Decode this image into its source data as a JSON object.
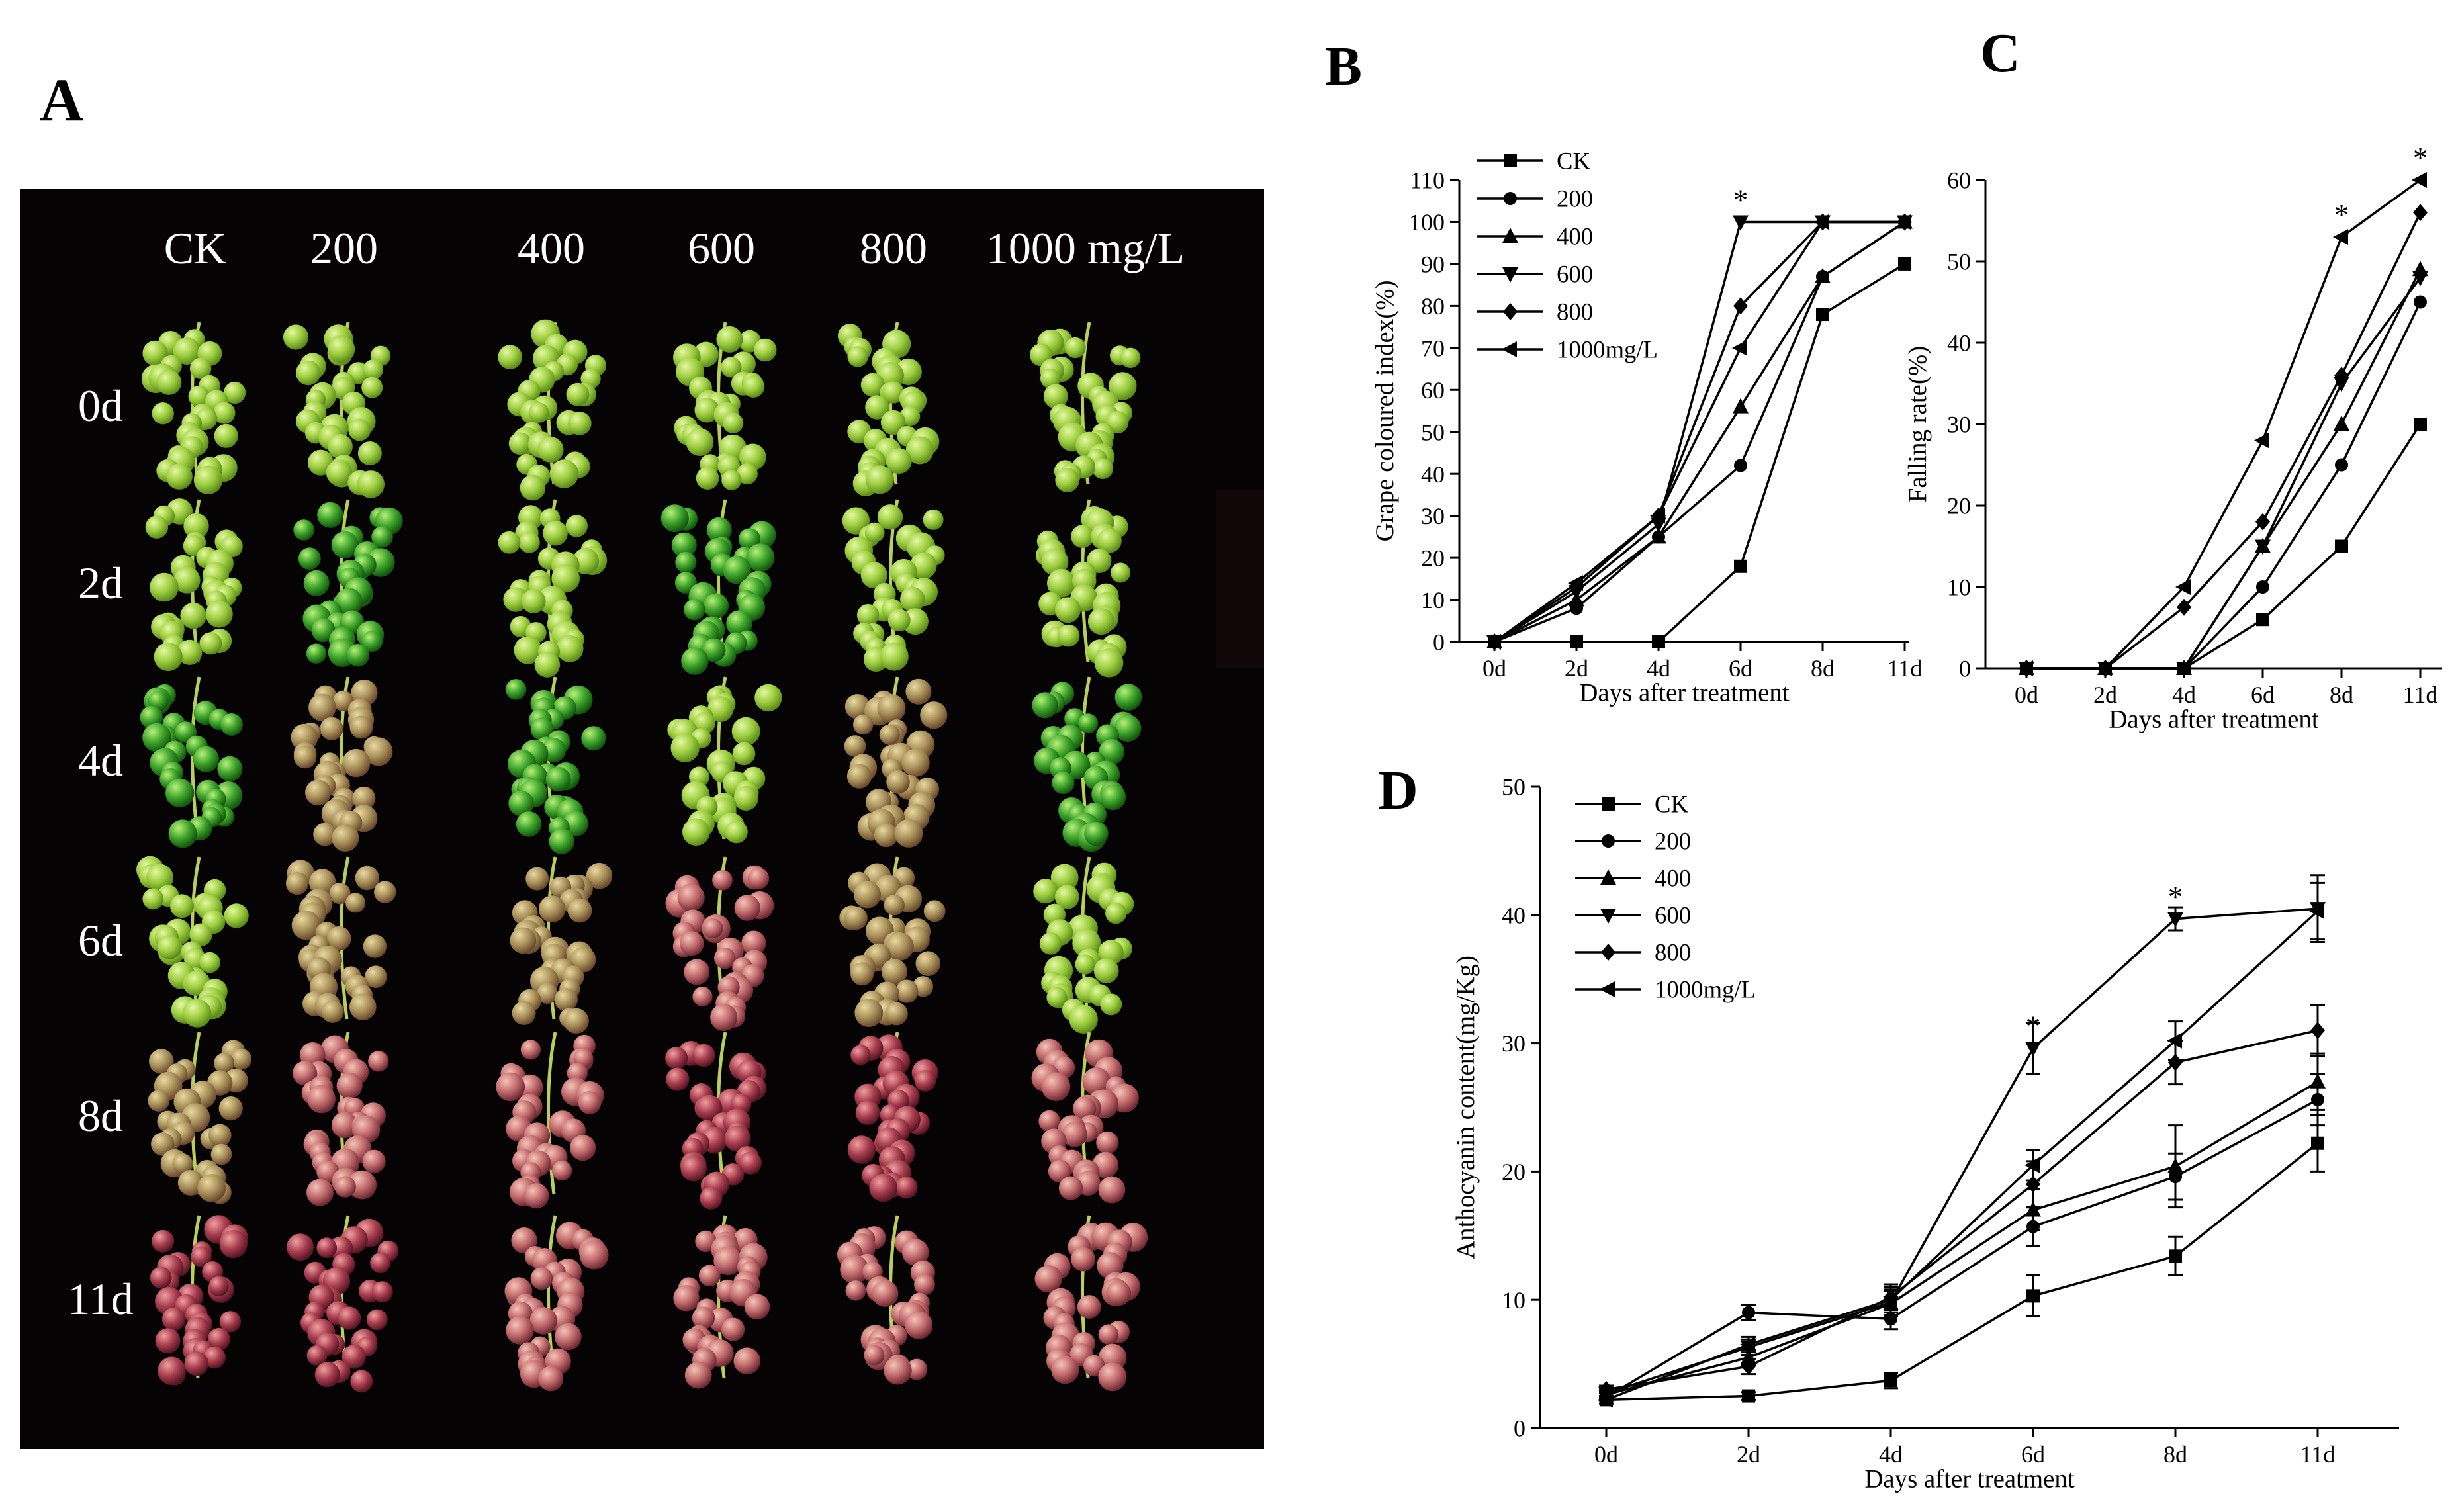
{
  "panel_labels": {
    "a": "A",
    "b": "B",
    "c": "C",
    "d": "D"
  },
  "photo_grid": {
    "column_labels": [
      "CK",
      "200",
      "400",
      "600",
      "800",
      "1000 mg/L"
    ],
    "row_labels": [
      "0d",
      "2d",
      "4d",
      "6d",
      "8d",
      "11d"
    ]
  },
  "colors": {
    "photo_background": "#050303",
    "line": "#000000",
    "axis": "#000000"
  },
  "chart_data": [
    {
      "id": "B",
      "type": "line",
      "title": "",
      "xlabel": "Days after treatment",
      "ylabel": "Grape coloured index(%)",
      "categories": [
        "0d",
        "2d",
        "4d",
        "6d",
        "8d",
        "11d"
      ],
      "ylim": [
        0,
        110
      ],
      "yticks": [
        0,
        10,
        20,
        30,
        40,
        50,
        60,
        70,
        80,
        90,
        100,
        110
      ],
      "legend_position": "top-left",
      "series": [
        {
          "name": "CK",
          "marker": "square",
          "values": [
            0,
            0,
            0,
            18,
            78,
            90
          ]
        },
        {
          "name": "200",
          "marker": "circle",
          "values": [
            0,
            8,
            25,
            42,
            87,
            100
          ]
        },
        {
          "name": "400",
          "marker": "triangle-up",
          "values": [
            0,
            10,
            25,
            56,
            87,
            100
          ]
        },
        {
          "name": "600",
          "marker": "triangle-down",
          "values": [
            0,
            12,
            28,
            100,
            100,
            100
          ]
        },
        {
          "name": "800",
          "marker": "diamond",
          "values": [
            0,
            13,
            30,
            80,
            100,
            100
          ]
        },
        {
          "name": "1000mg/L",
          "marker": "triangle-left",
          "values": [
            0,
            14,
            30,
            70,
            100,
            100
          ]
        }
      ],
      "annotations": [
        {
          "category": "6d",
          "y": 100,
          "text": "*"
        }
      ]
    },
    {
      "id": "C",
      "type": "line",
      "title": "",
      "xlabel": "Days after treatment",
      "ylabel": "Falling rate(%)",
      "categories": [
        "0d",
        "2d",
        "4d",
        "6d",
        "8d",
        "11d"
      ],
      "ylim": [
        0,
        60
      ],
      "yticks": [
        0,
        10,
        20,
        30,
        40,
        50,
        60
      ],
      "series": [
        {
          "name": "CK",
          "marker": "square",
          "values": [
            0,
            0,
            0,
            6,
            15,
            30
          ]
        },
        {
          "name": "200",
          "marker": "circle",
          "values": [
            0,
            0,
            0,
            10,
            25,
            45
          ]
        },
        {
          "name": "400",
          "marker": "triangle-up",
          "values": [
            0,
            0,
            0,
            15,
            30,
            49
          ]
        },
        {
          "name": "600",
          "marker": "triangle-down",
          "values": [
            0,
            0,
            0,
            15,
            35,
            48
          ]
        },
        {
          "name": "800",
          "marker": "diamond",
          "values": [
            0,
            0,
            7.5,
            18,
            36,
            56
          ]
        },
        {
          "name": "1000mg/L",
          "marker": "triangle-left",
          "values": [
            0,
            0,
            10,
            28,
            53,
            60
          ]
        }
      ],
      "annotations": [
        {
          "category": "8d",
          "y": 53,
          "text": "*"
        },
        {
          "category": "11d",
          "y": 60,
          "text": "*"
        }
      ]
    },
    {
      "id": "D",
      "type": "line",
      "title": "",
      "xlabel": "Days after treatment",
      "ylabel": "Anthocyanin content(mg/Kg)",
      "categories": [
        "0d",
        "2d",
        "4d",
        "6d",
        "8d",
        "11d"
      ],
      "ylim": [
        0,
        50
      ],
      "yticks": [
        0,
        10,
        20,
        30,
        40,
        50
      ],
      "legend_position": "top-left",
      "series": [
        {
          "name": "CK",
          "marker": "square",
          "values": [
            2.2,
            2.5,
            3.7,
            10.3,
            13.4,
            22.2
          ],
          "errors": [
            0.3,
            0.3,
            0.6,
            1.6,
            1.5,
            2.2
          ]
        },
        {
          "name": "200",
          "marker": "circle",
          "values": [
            2.4,
            9.0,
            8.5,
            15.7,
            19.6,
            25.6
          ],
          "errors": [
            0.3,
            0.6,
            0.8,
            1.5,
            1.8,
            2.0
          ]
        },
        {
          "name": "400",
          "marker": "triangle-up",
          "values": [
            2.6,
            5.5,
            9.7,
            17.0,
            20.4,
            27.0
          ],
          "errors": [
            0.3,
            0.6,
            1.0,
            1.6,
            3.2,
            2.2
          ]
        },
        {
          "name": "600",
          "marker": "triangle-down",
          "values": [
            2.7,
            6.3,
            9.8,
            29.6,
            39.7,
            40.5
          ],
          "errors": [
            0.3,
            0.6,
            1.0,
            2.0,
            0.9,
            2.6
          ]
        },
        {
          "name": "800",
          "marker": "diamond",
          "values": [
            3.0,
            4.8,
            10.2,
            19.0,
            28.5,
            31.0
          ],
          "errors": [
            0.3,
            0.6,
            1.0,
            1.8,
            1.7,
            2.0
          ]
        },
        {
          "name": "1000mg/L",
          "marker": "triangle-left",
          "values": [
            2.2,
            6.5,
            10.0,
            20.5,
            30.2,
            40.3
          ],
          "errors": [
            0.3,
            0.6,
            1.0,
            1.2,
            1.5,
            2.2
          ]
        }
      ],
      "annotations": [
        {
          "category": "6d",
          "y": 29.6,
          "text": "*"
        },
        {
          "category": "8d",
          "y": 39.7,
          "text": "*"
        }
      ]
    }
  ]
}
